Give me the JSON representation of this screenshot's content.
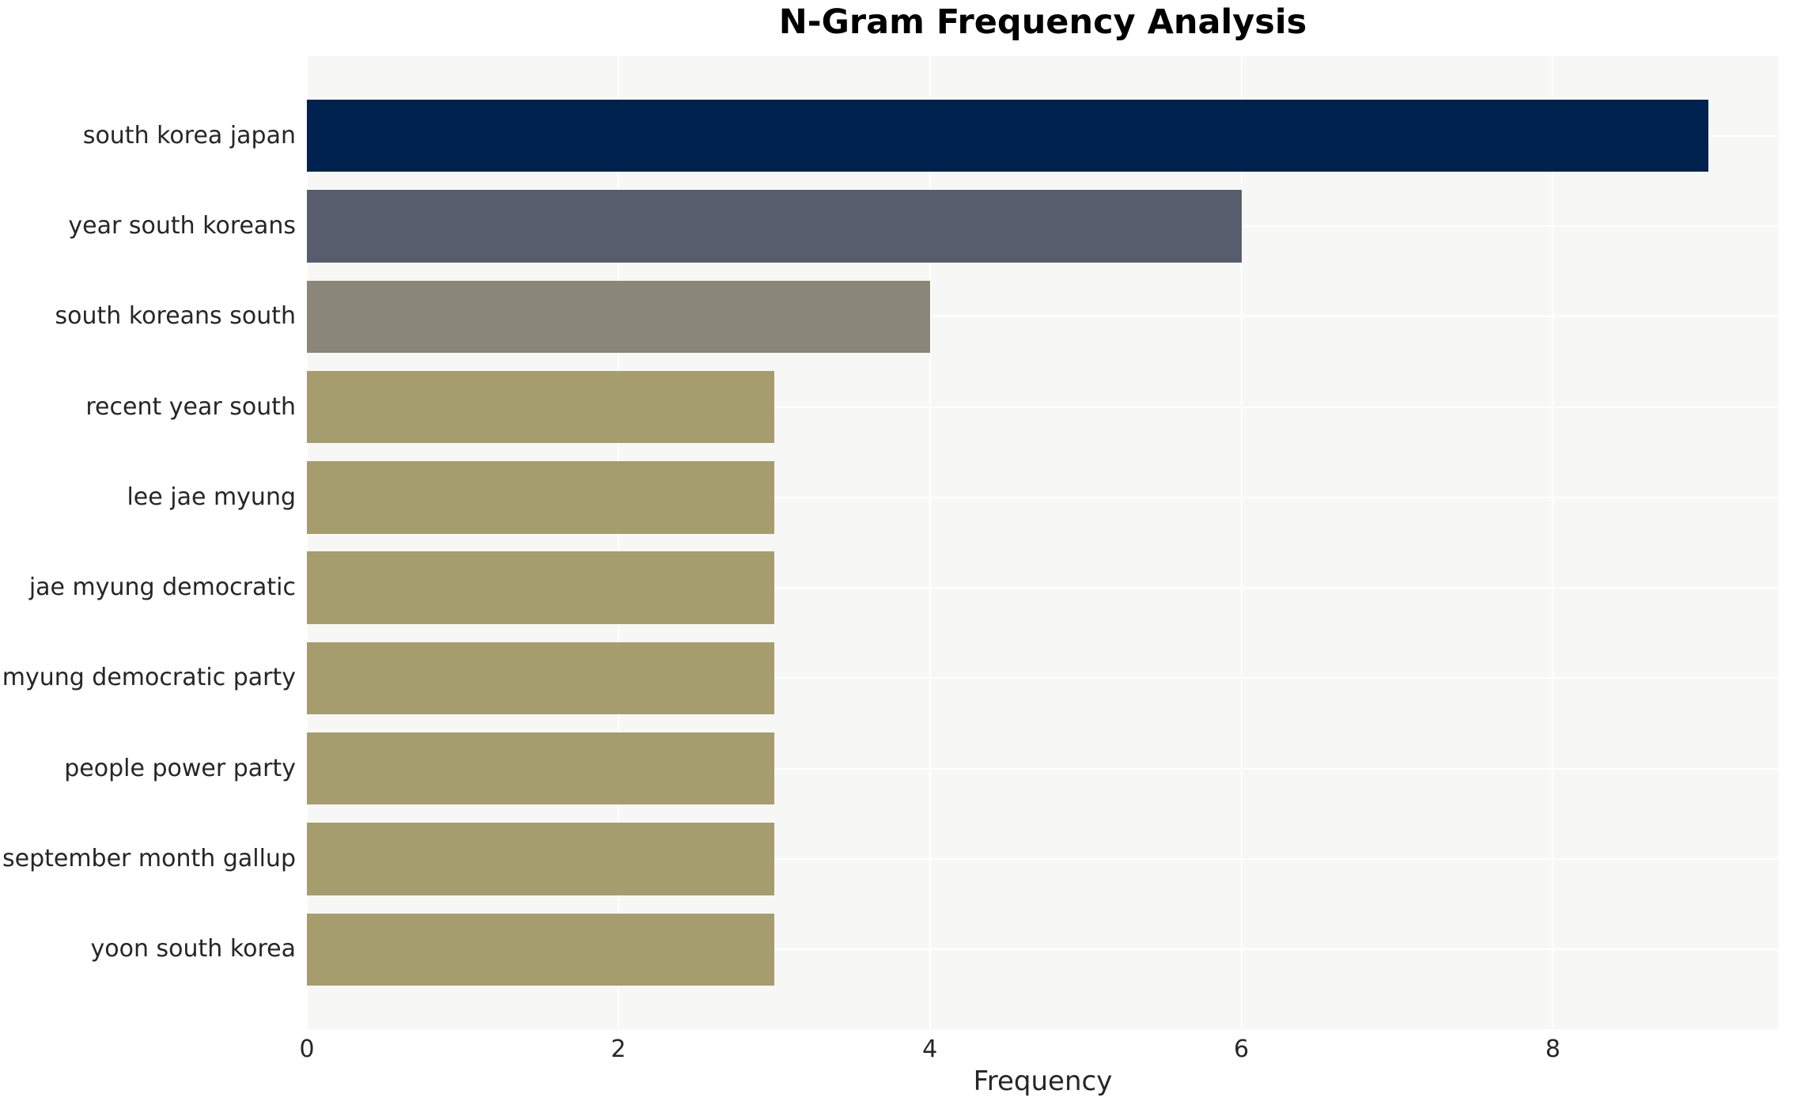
{
  "chart_data": {
    "type": "bar",
    "orientation": "horizontal",
    "title": "N-Gram Frequency Analysis",
    "xlabel": "Frequency",
    "ylabel": "",
    "categories": [
      "south korea japan",
      "year south koreans",
      "south koreans south",
      "recent year south",
      "lee jae myung",
      "jae myung democratic",
      "myung democratic party",
      "people power party",
      "september month gallup",
      "yoon south korea"
    ],
    "values": [
      9,
      6,
      4,
      3,
      3,
      3,
      3,
      3,
      3,
      3
    ],
    "bar_colors": [
      "#00224e",
      "#575d6d",
      "#8a8779",
      "#a69d6e",
      "#a69d6e",
      "#a69d6e",
      "#a69d6e",
      "#a69d6e",
      "#a69d6e",
      "#a69d6e"
    ],
    "xticks": [
      0,
      2,
      4,
      6,
      8
    ],
    "xlim": [
      0,
      9.45
    ],
    "grid": true,
    "legend_position": "none",
    "plot_background": "#f7f7f5",
    "grid_color": "#ffffff",
    "text_color": "#262626",
    "title_color": "#000000"
  }
}
